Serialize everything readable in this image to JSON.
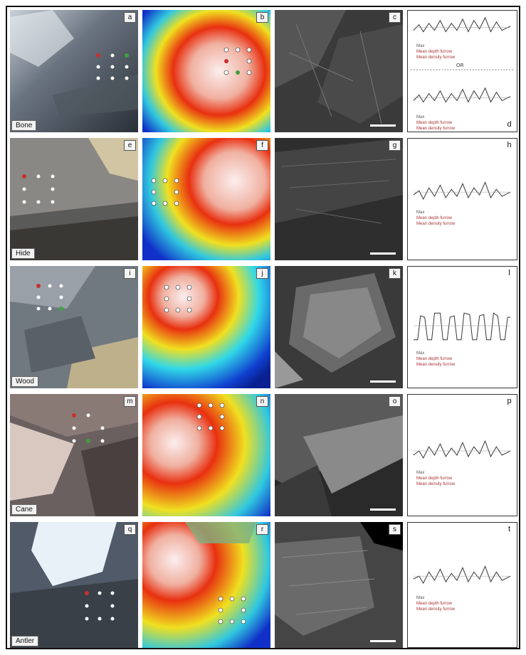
{
  "rows": [
    {
      "material": "Bone",
      "letters": [
        "a",
        "b",
        "c",
        "d"
      ],
      "legend": [
        "Max",
        "Mean depth furrow",
        "Mean density furrow"
      ],
      "divider": "OR"
    },
    {
      "material": "Hide",
      "letters": [
        "e",
        "f",
        "g",
        "h"
      ],
      "legend": [
        "Max",
        "Mean depth furrow",
        "Mean density furrow"
      ]
    },
    {
      "material": "Wood",
      "letters": [
        "i",
        "j",
        "k",
        "l"
      ],
      "legend": [
        "Max",
        "Mean depth furrow",
        "Mean density furrow"
      ]
    },
    {
      "material": "Cane",
      "letters": [
        "m",
        "n",
        "o",
        "p"
      ],
      "legend": [
        "Max",
        "Mean depth furrow",
        "Mean density furrow"
      ]
    },
    {
      "material": "Antler",
      "letters": [
        "q",
        "r",
        "s",
        "t"
      ],
      "legend": [
        "Max",
        "Mean depth furrow",
        "Mean density furrow"
      ]
    }
  ],
  "colors": {
    "heat_low": "#1030c8",
    "heat_mid": "#f0e020",
    "heat_high": "#e83010",
    "heat_peak": "#f8e8e8",
    "marker_red": "#c83030",
    "marker_green": "#40a040",
    "marker_white": "#ffffff"
  }
}
